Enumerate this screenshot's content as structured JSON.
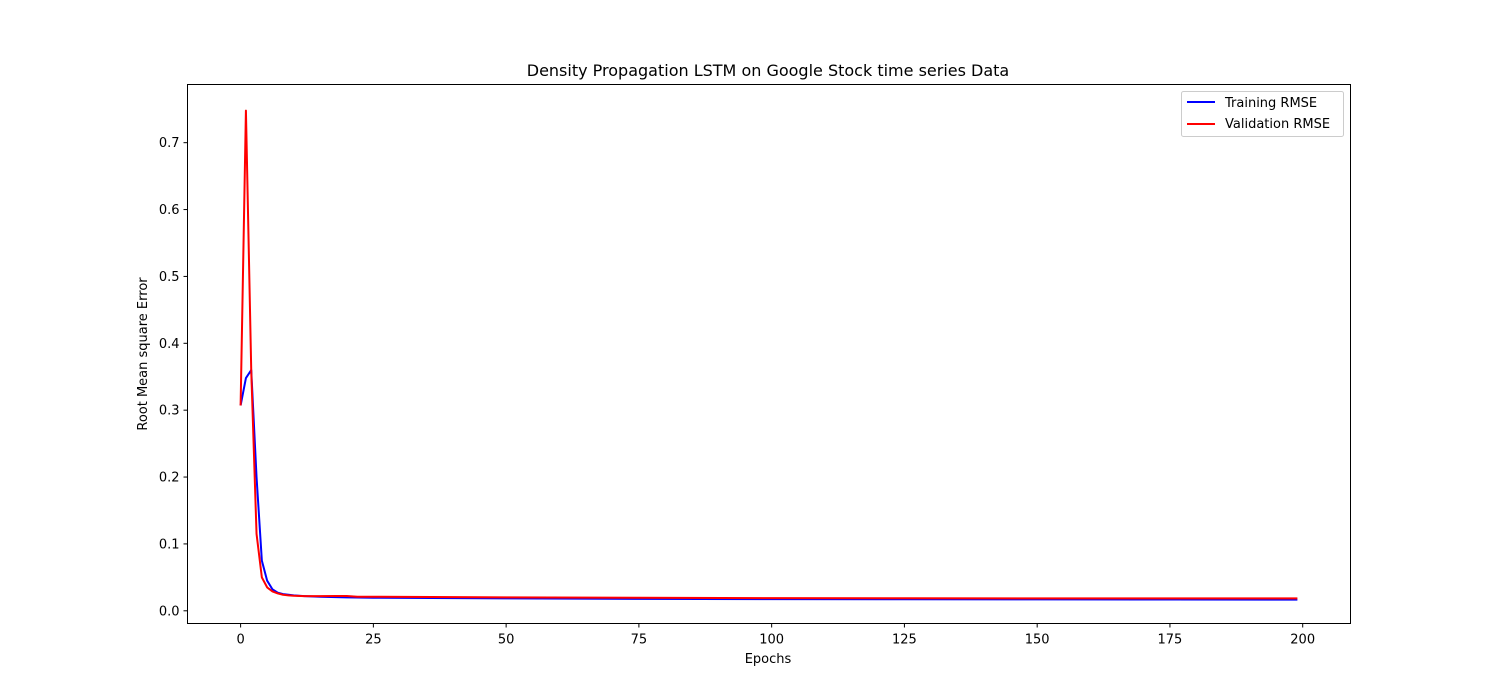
{
  "chart_data": {
    "type": "line",
    "title": "Density Propagation LSTM on Google Stock time series Data",
    "xlabel": "Epochs",
    "ylabel": "Root Mean square Error",
    "xlim": [
      -10,
      209
    ],
    "ylim": [
      -0.019,
      0.787
    ],
    "xticks": [
      0,
      25,
      50,
      75,
      100,
      125,
      150,
      175,
      200
    ],
    "yticks": [
      0.0,
      0.1,
      0.2,
      0.3,
      0.4,
      0.5,
      0.6,
      0.7
    ],
    "ytick_labels": [
      "0.0",
      "0.1",
      "0.2",
      "0.3",
      "0.4",
      "0.5",
      "0.6",
      "0.7"
    ],
    "grid": false,
    "legend_position": "top-right",
    "series": [
      {
        "name": "Training RMSE",
        "color": "#0000ff",
        "points": [
          [
            0,
            0.307
          ],
          [
            1,
            0.348
          ],
          [
            2,
            0.36
          ],
          [
            3,
            0.2
          ],
          [
            4,
            0.075
          ],
          [
            5,
            0.045
          ],
          [
            6,
            0.032
          ],
          [
            7,
            0.027
          ],
          [
            8,
            0.025
          ],
          [
            9,
            0.024
          ],
          [
            10,
            0.023
          ],
          [
            12,
            0.022
          ],
          [
            15,
            0.021
          ],
          [
            20,
            0.02
          ],
          [
            25,
            0.0195
          ],
          [
            50,
            0.0185
          ],
          [
            75,
            0.0178
          ],
          [
            100,
            0.0175
          ],
          [
            125,
            0.0172
          ],
          [
            150,
            0.017
          ],
          [
            175,
            0.0168
          ],
          [
            199,
            0.0167
          ]
        ]
      },
      {
        "name": "Validation RMSE",
        "color": "#ff0000",
        "points": [
          [
            0,
            0.307
          ],
          [
            1,
            0.748
          ],
          [
            2,
            0.36
          ],
          [
            3,
            0.115
          ],
          [
            4,
            0.05
          ],
          [
            5,
            0.035
          ],
          [
            6,
            0.029
          ],
          [
            7,
            0.026
          ],
          [
            8,
            0.024
          ],
          [
            9,
            0.023
          ],
          [
            10,
            0.0225
          ],
          [
            12,
            0.022
          ],
          [
            15,
            0.022
          ],
          [
            18,
            0.0222
          ],
          [
            20,
            0.0222
          ],
          [
            22,
            0.021
          ],
          [
            25,
            0.021
          ],
          [
            50,
            0.02
          ],
          [
            75,
            0.0195
          ],
          [
            100,
            0.019
          ],
          [
            125,
            0.0188
          ],
          [
            150,
            0.0186
          ],
          [
            175,
            0.0185
          ],
          [
            199,
            0.0185
          ]
        ]
      }
    ]
  }
}
